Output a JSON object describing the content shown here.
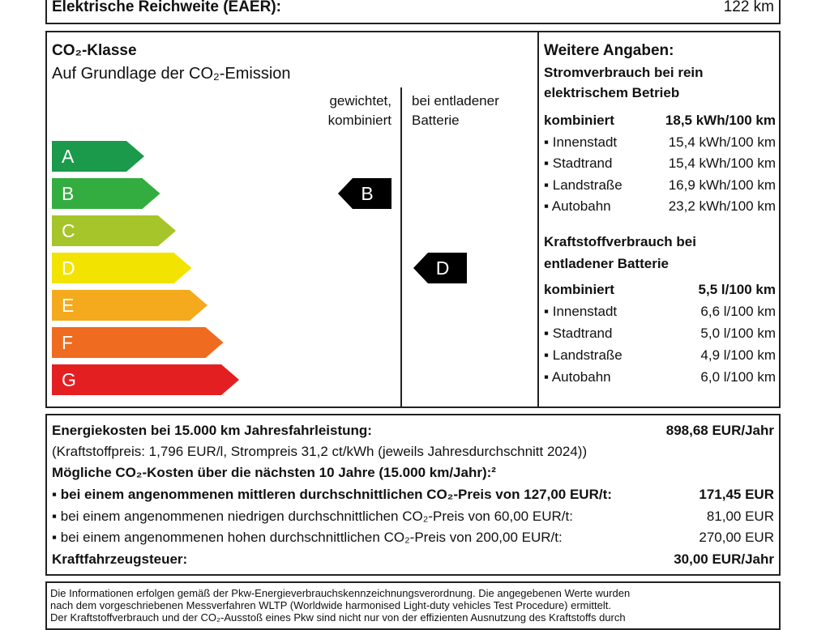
{
  "range": {
    "label": "Elektrische Reichweite (EAER):",
    "value": "122 km"
  },
  "co2": {
    "title": "CO₂-Klasse",
    "subtitle": "Auf Grundlage der CO₂-Emission",
    "col1_line1": "gewichtet,",
    "col1_line2": "kombiniert",
    "col2_line1": "bei entladener",
    "col2_line2": "Batterie",
    "classes": [
      {
        "label": "A",
        "color": "#1a9a4a"
      },
      {
        "label": "B",
        "color": "#33ad3f"
      },
      {
        "label": "C",
        "color": "#a6c52a"
      },
      {
        "label": "D",
        "color": "#f2e400"
      },
      {
        "label": "E",
        "color": "#f5aa1d"
      },
      {
        "label": "F",
        "color": "#ee6b20"
      },
      {
        "label": "G",
        "color": "#e41f22"
      }
    ],
    "weighted_class": "B",
    "discharged_class": "D"
  },
  "further": {
    "title": "Weitere Angaben:",
    "power_heading_1": "Stromverbrauch bei rein",
    "power_heading_2": "elektrischem Betrieb",
    "power_rows": [
      {
        "label": "kombiniert",
        "value": "18,5 kWh/100 km"
      },
      {
        "label": "▪ Innenstadt",
        "value": "15,4 kWh/100 km"
      },
      {
        "label": "▪ Stadtrand",
        "value": "15,4 kWh/100 km"
      },
      {
        "label": "▪ Landstraße",
        "value": "16,9 kWh/100 km"
      },
      {
        "label": "▪ Autobahn",
        "value": "23,2 kWh/100 km"
      }
    ],
    "fuel_heading_1": "Kraftstoffverbrauch bei",
    "fuel_heading_2": "entladener Batterie",
    "fuel_rows": [
      {
        "label": "kombiniert",
        "value": "5,5 l/100 km"
      },
      {
        "label": "▪ Innenstadt",
        "value": "6,6 l/100 km"
      },
      {
        "label": "▪ Stadtrand",
        "value": "5,0 l/100 km"
      },
      {
        "label": "▪ Landstraße",
        "value": "4,9 l/100 km"
      },
      {
        "label": "▪ Autobahn",
        "value": "6,0 l/100 km"
      }
    ]
  },
  "costs": {
    "energy_label": "Energiekosten bei 15.000 km Jahresfahrleistung:",
    "energy_value": "898,68 EUR/Jahr",
    "prices_note": "(Kraftstoffpreis: 1,796 EUR/l, Strompreis 31,2 ct/kWh (jeweils Jahresdurchschnitt 2024))",
    "co2_costs_label": "Mögliche CO₂-Kosten über die nächsten 10 Jahre (15.000 km/Jahr):²",
    "scenarios": [
      {
        "label": "▪ bei einem angenommenen mittleren durchschnittlichen CO₂-Preis von 127,00 EUR/t:",
        "value": "171,45 EUR"
      },
      {
        "label": "▪ bei einem angenommenen niedrigen durchschnittlichen CO₂-Preis von 60,00 EUR/t:",
        "value": "81,00 EUR"
      },
      {
        "label": "▪ bei einem angenommenen hohen durchschnittlichen CO₂-Preis von 200,00 EUR/t:",
        "value": "270,00 EUR"
      }
    ],
    "tax_label": "Kraftfahrzeugsteuer:",
    "tax_value": "30,00 EUR/Jahr"
  },
  "footer": {
    "line1": "Die Informationen erfolgen gemäß der Pkw-Energieverbrauchskennzeichnungsverordnung. Die angegebenen Werte wurden",
    "line2": "nach dem vorgeschriebenen Messverfahren WLTP (Worldwide harmonised Light-duty vehicles Test Procedure) ermittelt.",
    "line3": "Der Kraftstoffverbrauch und der CO₂-Ausstoß eines Pkw sind nicht nur von der effizienten Ausnutzung des Kraftstoffs durch"
  }
}
